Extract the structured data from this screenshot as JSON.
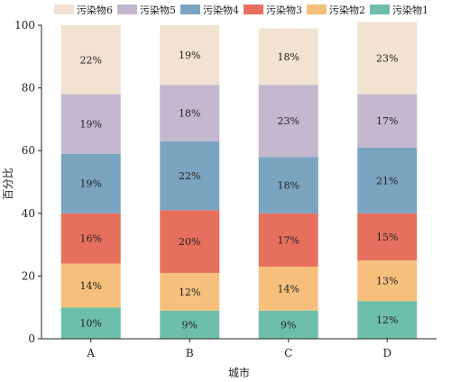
{
  "chart_data": {
    "type": "bar",
    "stacked": true,
    "title": "",
    "xlabel": "城市",
    "ylabel": "百分比",
    "ylim": [
      0,
      100
    ],
    "yticks": [
      0,
      20,
      40,
      60,
      80,
      100
    ],
    "categories": [
      "A",
      "B",
      "C",
      "D"
    ],
    "grid": false,
    "legend_position": "top",
    "legend_order": [
      "污染物6",
      "污染物5",
      "污染物4",
      "污染物3",
      "污染物2",
      "污染物1"
    ],
    "series": [
      {
        "name": "污染物1",
        "color": "#6dbfaa",
        "values": [
          10,
          9,
          9,
          12
        ],
        "labels": [
          "10%",
          "9%",
          "9%",
          "12%"
        ]
      },
      {
        "name": "污染物2",
        "color": "#f6c07c",
        "values": [
          14,
          12,
          14,
          13
        ],
        "labels": [
          "14%",
          "12%",
          "14%",
          "13%"
        ]
      },
      {
        "name": "污染物3",
        "color": "#e6705d",
        "values": [
          16,
          20,
          17,
          15
        ],
        "labels": [
          "16%",
          "20%",
          "17%",
          "15%"
        ]
      },
      {
        "name": "污染物4",
        "color": "#7ba4c0",
        "values": [
          19,
          22,
          18,
          21
        ],
        "labels": [
          "19%",
          "22%",
          "18%",
          "21%"
        ]
      },
      {
        "name": "污染物5",
        "color": "#c4b8cf",
        "values": [
          19,
          18,
          23,
          17
        ],
        "labels": [
          "19%",
          "18%",
          "23%",
          "17%"
        ]
      },
      {
        "name": "污染物6",
        "color": "#f1e2d2",
        "values": [
          22,
          19,
          18,
          23
        ],
        "labels": [
          "22%",
          "19%",
          "18%",
          "23%"
        ]
      }
    ]
  }
}
